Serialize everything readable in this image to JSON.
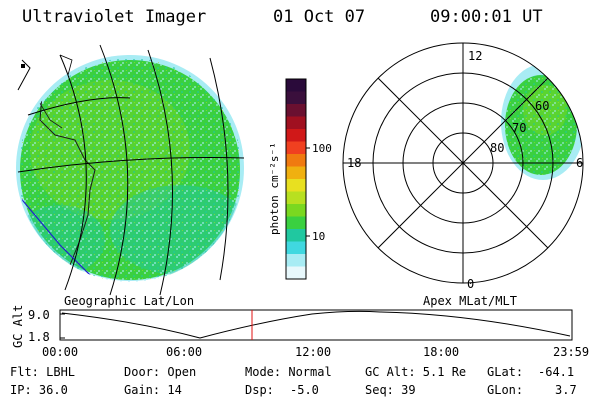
{
  "header": {
    "instrument": "Ultraviolet Imager",
    "date": "01 Oct 07",
    "time": "09:00:01 UT"
  },
  "colorbar": {
    "unit_label": "photon cm⁻²s⁻¹",
    "tick_labels": [
      "100",
      "10"
    ],
    "colors": [
      "#2a0a3a",
      "#3a0f3c",
      "#6a1030",
      "#a01020",
      "#d01818",
      "#f04020",
      "#f07a10",
      "#f0b010",
      "#e8e020",
      "#b8e020",
      "#7ad820",
      "#3ad040",
      "#20c8a0",
      "#40d8e0",
      "#a8ecf4",
      "#e8f8fc"
    ]
  },
  "left_image": {
    "label": "Geographic Lat/Lon"
  },
  "right_image": {
    "label": "Apex MLat/MLT",
    "mlt_labels": {
      "top": "12",
      "left": "18",
      "right": "6",
      "bottom": "0"
    },
    "lat_labels": [
      "60",
      "70",
      "80"
    ]
  },
  "altitude_plot": {
    "ylabel": "GC Alt",
    "y_ticks": [
      "9.0",
      "1.8"
    ],
    "x_ticks": [
      "00:00",
      "06:00",
      "12:00",
      "18:00",
      "23:59"
    ],
    "current_time_fraction": 0.375
  },
  "info": {
    "filter": "Flt: LBHL",
    "ip": "IP: 36.0",
    "door": "Door: Open",
    "gain": "Gain: 14",
    "mode": "Mode: Normal",
    "dsp_label": "Dsp:",
    "dsp_value": "-5.0",
    "gc_alt": "GC Alt: 5.1 Re",
    "seq": "Seq: 39",
    "glat_label": "GLat:",
    "glat_value": "-64.1",
    "glon_label": "GLon:",
    "glon_value": "3.7"
  }
}
